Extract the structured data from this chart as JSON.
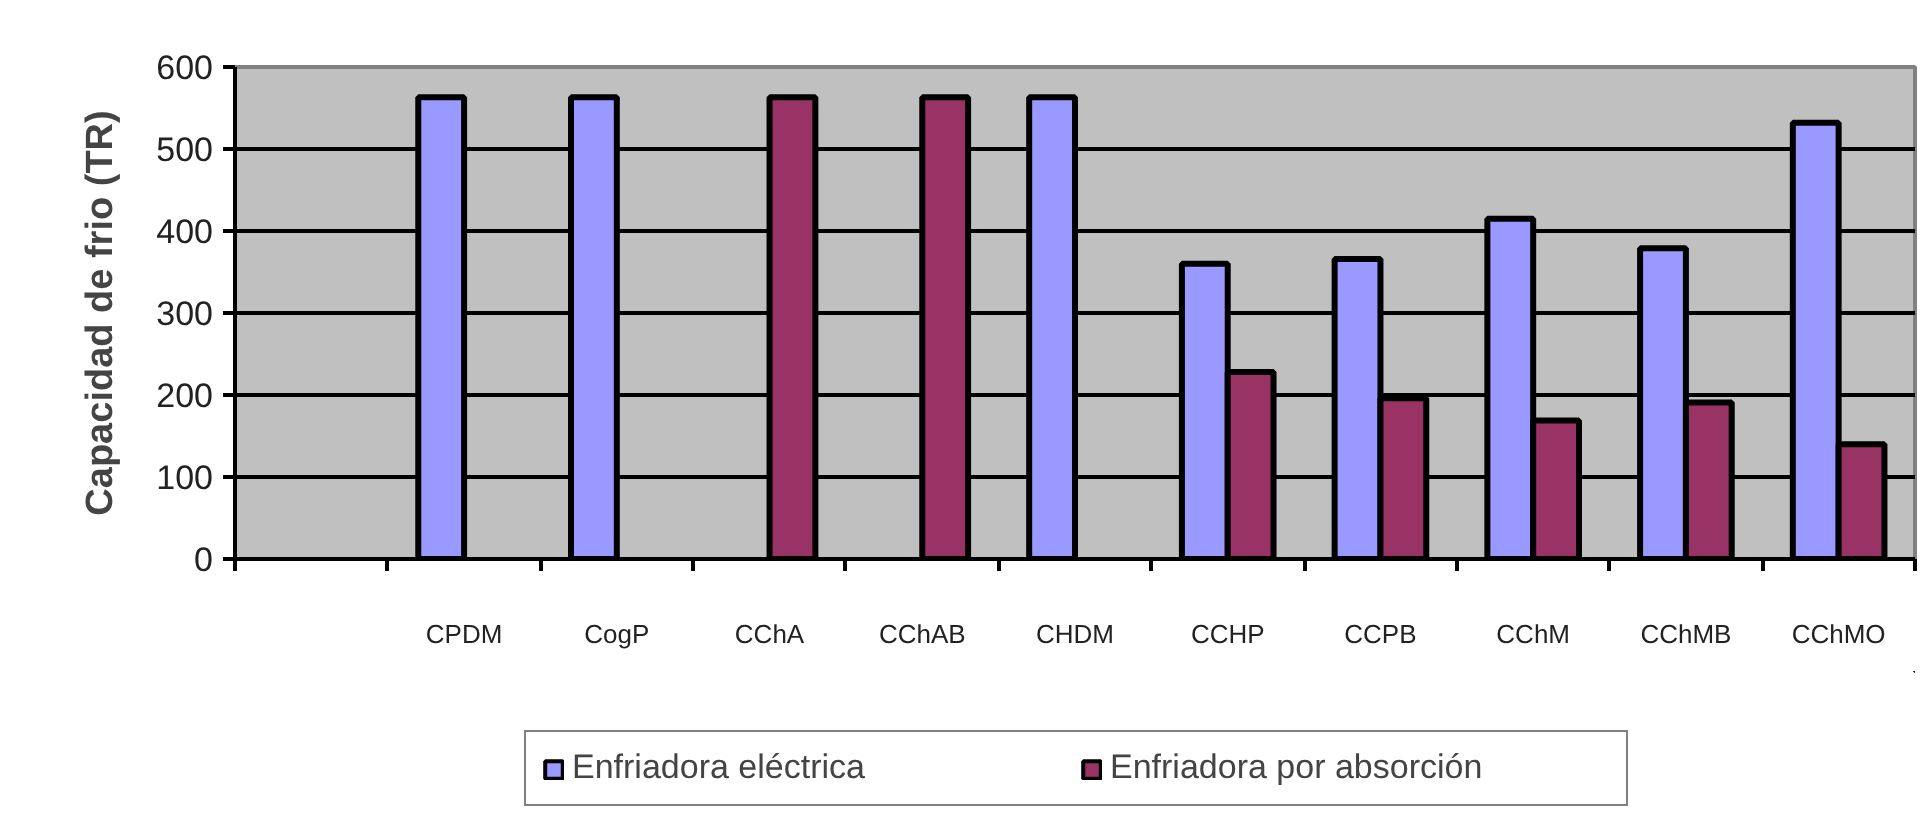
{
  "chart_data": {
    "type": "bar",
    "ylabel": "Capacidad de frio (TR)",
    "categories": [
      null,
      "CPDM",
      "CogP",
      "CChA",
      "CChAB",
      "CHDM",
      "CCHP",
      "CCPB",
      "CChM",
      "CChMB",
      "CChMO"
    ],
    "series": [
      {
        "name": "Enfriadora eléctrica",
        "color": "#9999ff",
        "values": [
          null,
          563,
          563,
          null,
          null,
          563,
          360,
          366,
          415,
          379,
          532
        ]
      },
      {
        "name": "Enfriadora por absorción",
        "color": "#993366",
        "values": [
          null,
          null,
          null,
          563,
          563,
          null,
          228,
          196,
          169,
          191,
          140
        ]
      }
    ],
    "ylim": [
      0,
      600
    ],
    "yticks": [
      0,
      100,
      200,
      300,
      400,
      500,
      600
    ],
    "grid": "y",
    "legend": "bottom"
  }
}
